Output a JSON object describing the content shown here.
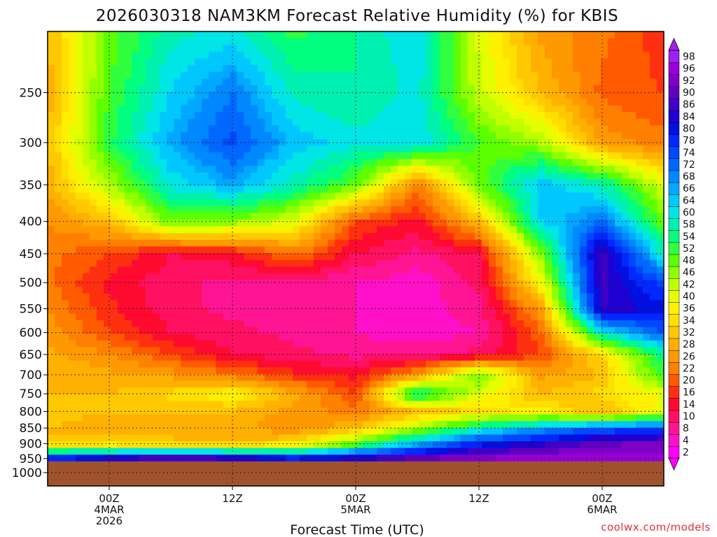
{
  "chart_data": {
    "type": "heatmap",
    "title": "2026030318 NAM3KM Forecast Relative Humidity (%) for KBIS",
    "xlabel": "Forecast Time (UTC)",
    "ylabel": "",
    "x_unit": "forecast hour from 2026030318",
    "x_range": [
      0,
      60
    ],
    "y_unit": "pressure (hPa)",
    "y_range": [
      1050,
      200
    ],
    "y_scale": "log",
    "grid": true,
    "y_ticks": [
      "250",
      "300",
      "350",
      "400",
      "450",
      "500",
      "550",
      "600",
      "650",
      "700",
      "750",
      "800",
      "850",
      "900",
      "950",
      "1000"
    ],
    "x_ticks": [
      {
        "hour": 6,
        "lines": [
          "00Z",
          "4MAR",
          "2026"
        ]
      },
      {
        "hour": 18,
        "lines": [
          "12Z"
        ]
      },
      {
        "hour": 30,
        "lines": [
          "00Z",
          "5MAR"
        ]
      },
      {
        "hour": 42,
        "lines": [
          "12Z"
        ]
      },
      {
        "hour": 54,
        "lines": [
          "00Z",
          "6MAR"
        ]
      }
    ],
    "colorbar": {
      "levels": [
        "2",
        "4",
        "8",
        "10",
        "14",
        "16",
        "20",
        "22",
        "26",
        "28",
        "32",
        "34",
        "36",
        "40",
        "42",
        "46",
        "48",
        "52",
        "54",
        "58",
        "60",
        "64",
        "66",
        "68",
        "72",
        "74",
        "78",
        "80",
        "84",
        "86",
        "90",
        "92",
        "96",
        "98"
      ],
      "colors": [
        "#ff00ff",
        "#ff10c8",
        "#ff1493",
        "#ff1060",
        "#ff0a30",
        "#ff3010",
        "#ff5a00",
        "#ff8000",
        "#ff9900",
        "#ffb000",
        "#ffc800",
        "#ffdf00",
        "#fff000",
        "#e6ff00",
        "#c0ff00",
        "#90ff00",
        "#5cff00",
        "#30ff40",
        "#00ff7f",
        "#00f0b0",
        "#00e5e5",
        "#00c8ff",
        "#00a8ff",
        "#0088ff",
        "#0068ff",
        "#0048ff",
        "#0028ff",
        "#0010e0",
        "#2000d0",
        "#4000c8",
        "#6000c0",
        "#8000c8",
        "#9a00d8",
        "#a020f0"
      ]
    },
    "rh_field": {
      "pressure_levels_hPa": [
        200,
        250,
        300,
        350,
        400,
        450,
        500,
        550,
        600,
        650,
        700,
        750,
        800,
        850,
        900,
        950
      ],
      "forecast_hours": [
        0,
        6,
        12,
        18,
        24,
        30,
        36,
        42,
        48,
        54,
        60
      ],
      "rh_percent": [
        [
          30,
          48,
          58,
          60,
          52,
          56,
          62,
          40,
          26,
          22,
          16
        ],
        [
          28,
          50,
          62,
          70,
          58,
          56,
          60,
          42,
          30,
          20,
          18
        ],
        [
          30,
          52,
          66,
          74,
          64,
          60,
          62,
          50,
          44,
          26,
          22
        ],
        [
          28,
          44,
          60,
          66,
          58,
          48,
          22,
          48,
          64,
          58,
          40
        ],
        [
          24,
          30,
          48,
          46,
          40,
          18,
          14,
          30,
          62,
          70,
          48
        ],
        [
          22,
          18,
          12,
          14,
          22,
          12,
          8,
          12,
          46,
          88,
          58
        ],
        [
          22,
          14,
          10,
          8,
          8,
          6,
          4,
          10,
          38,
          86,
          74
        ],
        [
          24,
          16,
          10,
          8,
          6,
          6,
          4,
          8,
          26,
          86,
          80
        ],
        [
          26,
          18,
          12,
          10,
          8,
          6,
          4,
          6,
          20,
          60,
          74
        ],
        [
          28,
          24,
          18,
          12,
          10,
          8,
          8,
          10,
          18,
          34,
          56
        ],
        [
          30,
          28,
          26,
          22,
          16,
          14,
          26,
          48,
          26,
          30,
          52
        ],
        [
          30,
          30,
          34,
          38,
          28,
          18,
          58,
          40,
          30,
          34,
          38
        ],
        [
          32,
          30,
          30,
          30,
          26,
          22,
          30,
          34,
          36,
          30,
          40
        ],
        [
          30,
          28,
          30,
          28,
          24,
          30,
          44,
          58,
          66,
          72,
          74
        ],
        [
          30,
          32,
          30,
          30,
          34,
          48,
          66,
          78,
          84,
          90,
          92
        ],
        [
          78,
          84,
          90,
          86,
          80,
          84,
          90,
          94,
          96,
          96,
          96
        ]
      ]
    },
    "surface_pressure_hPa": 960
  },
  "credit": "coolwx.com/models"
}
